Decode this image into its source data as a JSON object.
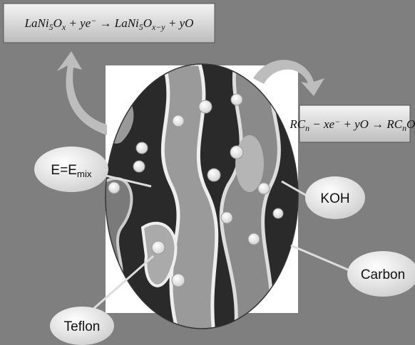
{
  "equations": [
    [
      {
        "text": "LaNi"
      },
      {
        "sub": "5"
      },
      {
        "text": "O"
      },
      {
        "sub": "x"
      },
      {
        "text": " + ye"
      },
      {
        "sup": "−"
      },
      {
        "text": " → LaNi"
      },
      {
        "sub": "5"
      },
      {
        "text": "O"
      },
      {
        "sub": "x−y"
      },
      {
        "text": " + yO"
      }
    ],
    [
      {
        "text": "RC"
      },
      {
        "sub": "n"
      },
      {
        "text": " − xe"
      },
      {
        "sup": "−"
      },
      {
        "text": " + yO → RC"
      },
      {
        "sub": "n"
      },
      {
        "text": "O"
      },
      {
        "sub": "y"
      }
    ]
  ],
  "labels": [
    [
      {
        "text": "E=E"
      },
      {
        "sub": "mix"
      }
    ],
    [
      {
        "text": "KOH"
      }
    ],
    [
      {
        "text": "Carbon"
      }
    ],
    [
      {
        "text": "Teflon"
      }
    ]
  ]
}
